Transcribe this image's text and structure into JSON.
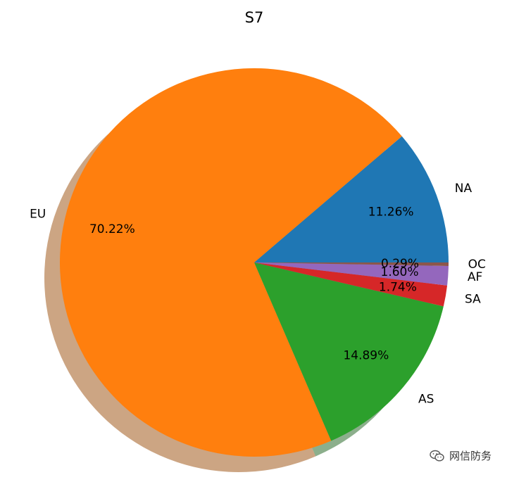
{
  "chart_data": {
    "type": "pie",
    "title": "S7",
    "slices": [
      {
        "label": "NA",
        "value": 11.26,
        "pct_label": "11.26%",
        "color": "#1f77b4"
      },
      {
        "label": "EU",
        "value": 70.22,
        "pct_label": "70.22%",
        "color": "#ff7f0e"
      },
      {
        "label": "AS",
        "value": 14.89,
        "pct_label": "14.89%",
        "color": "#2ca02c"
      },
      {
        "label": "SA",
        "value": 1.74,
        "pct_label": "1.74%",
        "color": "#d62728"
      },
      {
        "label": "AF",
        "value": 1.6,
        "pct_label": "1.60%",
        "color": "#9467bd"
      },
      {
        "label": "OC",
        "value": 0.29,
        "pct_label": "0.29%",
        "color": "#8c564b"
      }
    ],
    "start_angle_deg": 0,
    "direction": "counterclockwise",
    "shadow": true
  },
  "watermark": {
    "text": "网信防务",
    "icon": "wechat-icon"
  }
}
